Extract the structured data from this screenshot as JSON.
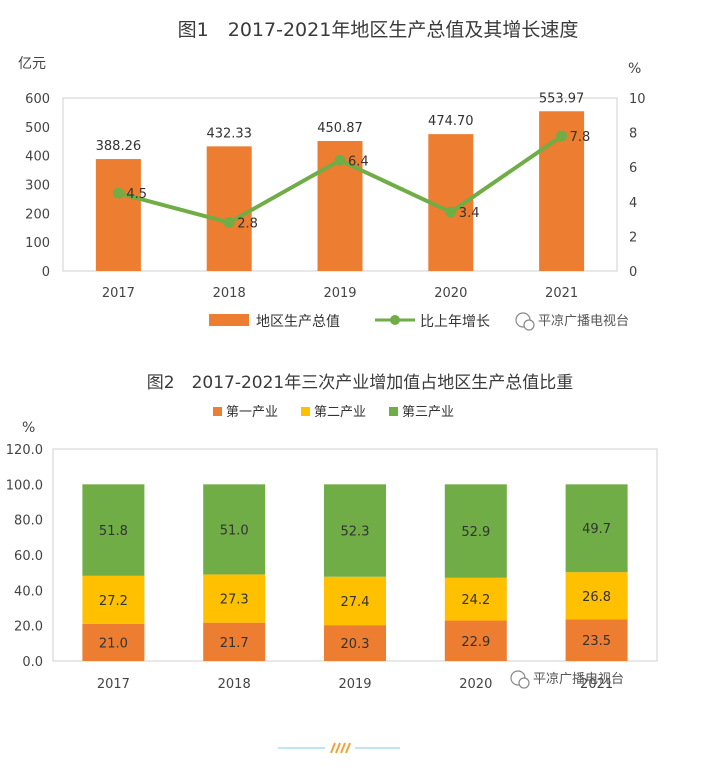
{
  "chart_data": [
    {
      "type": "bar+line",
      "title": "图1　2017-2021年地区生产总值及其增长速度",
      "categories": [
        "2017",
        "2018",
        "2019",
        "2020",
        "2021"
      ],
      "left_unit": "亿元",
      "right_unit": "%",
      "left_ylim": [
        0,
        600
      ],
      "left_ticks": [
        "0",
        "100",
        "200",
        "300",
        "400",
        "500",
        "600"
      ],
      "right_ylim": [
        0,
        10
      ],
      "right_ticks": [
        "0",
        "2",
        "4",
        "6",
        "8",
        "10"
      ],
      "series": [
        {
          "name": "地区生产总值",
          "type": "bar",
          "color": "#ed7d31",
          "values": [
            388.26,
            432.33,
            450.87,
            474.7,
            553.97
          ],
          "labels": [
            "388.26",
            "432.33",
            "450.87",
            "474.70",
            "553.97"
          ]
        },
        {
          "name": "比上年增长",
          "type": "line",
          "color": "#70ad47",
          "values": [
            4.5,
            2.8,
            6.4,
            3.4,
            7.8
          ],
          "labels": [
            "4.5",
            "2.8",
            "6.4",
            "3.4",
            "7.8"
          ]
        }
      ],
      "legend": "bottom",
      "watermark": "平凉广播电视台"
    },
    {
      "type": "stacked-bar",
      "title": "图2　2017-2021年三次产业增加值占地区生产总值比重",
      "categories": [
        "2017",
        "2018",
        "2019",
        "2020",
        "2021"
      ],
      "unit": "%",
      "ylim": [
        0,
        120
      ],
      "ticks": [
        "0.0",
        "20.0",
        "40.0",
        "60.0",
        "80.0",
        "100.0",
        "120.0"
      ],
      "series": [
        {
          "name": "第一产业",
          "color": "#ed7d31",
          "values": [
            21.0,
            21.7,
            20.3,
            22.9,
            23.5
          ],
          "labels": [
            "21.0",
            "21.7",
            "20.3",
            "22.9",
            "23.5"
          ]
        },
        {
          "name": "第二产业",
          "color": "#ffc000",
          "values": [
            27.2,
            27.3,
            27.4,
            24.2,
            26.8
          ],
          "labels": [
            "27.2",
            "27.3",
            "27.4",
            "24.2",
            "26.8"
          ]
        },
        {
          "name": "第三产业",
          "color": "#70ad47",
          "values": [
            51.8,
            51.0,
            52.3,
            52.9,
            49.7
          ],
          "labels": [
            "51.8",
            "51.0",
            "52.3",
            "52.9",
            "49.7"
          ]
        }
      ],
      "legend": "top",
      "watermark": "平凉广播电视台"
    }
  ]
}
